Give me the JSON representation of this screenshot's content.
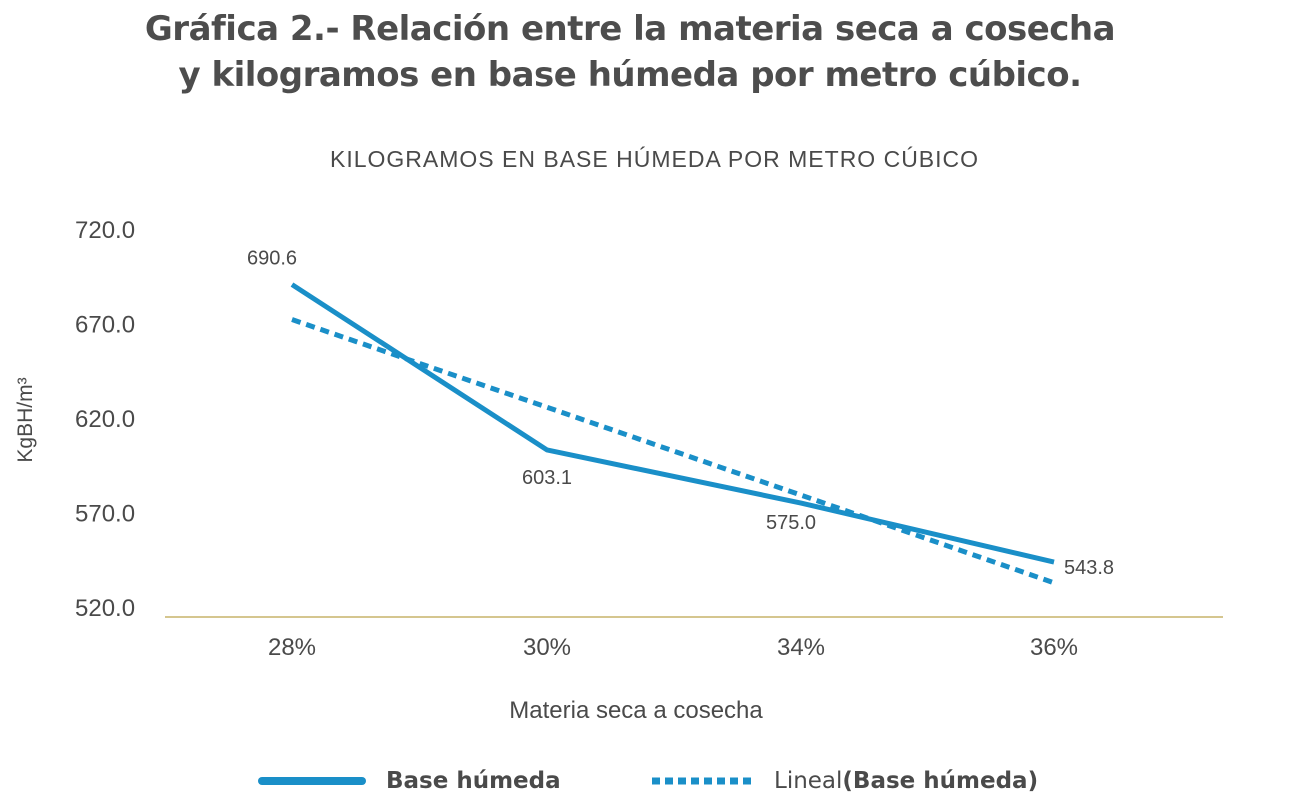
{
  "title": {
    "line1": "Gráfica 2.- Relación entre la materia seca a cosecha",
    "line2": "y kilogramos en base húmeda por metro cúbico."
  },
  "colors": {
    "series": "#1a8fc8",
    "axis": "#c7b46a",
    "text": "#4a4a4a"
  },
  "chart_data": {
    "type": "line",
    "title": "KILOGRAMOS EN BASE HÚMEDA POR METRO CÚBICO",
    "xlabel": "Materia seca a cosecha",
    "ylabel": "KgBH/m³",
    "categories": [
      "28%",
      "30%",
      "34%",
      "36%"
    ],
    "yticks": [
      "720.0",
      "670.0",
      "620.0",
      "570.0",
      "520.0"
    ],
    "ylim": [
      520,
      720
    ],
    "series": [
      {
        "name": "Base húmeda",
        "values": [
          690.6,
          603.1,
          575.0,
          543.8
        ],
        "labels": [
          "690.6",
          "603.1",
          "575.0",
          "543.8"
        ],
        "style": "solid"
      },
      {
        "name": "Lineal (Base húmeda)",
        "values": [
          672.1,
          625.7,
          579.2,
          532.8
        ],
        "style": "dashed"
      }
    ],
    "grid": false,
    "legend_position": "bottom"
  },
  "legend": {
    "solid_label": "Base húmeda",
    "trend_prefix": "Lineal ",
    "trend_label": "(Base húmeda)"
  }
}
